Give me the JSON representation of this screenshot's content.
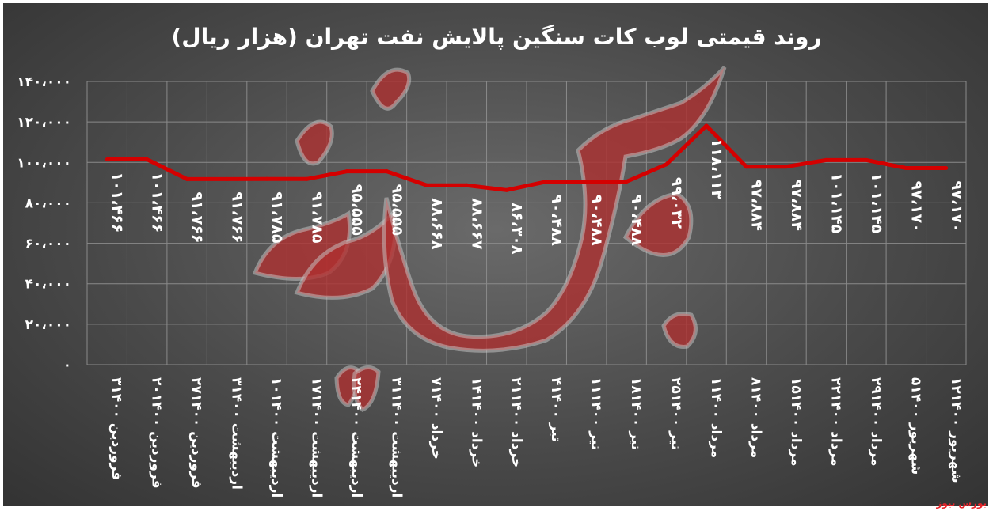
{
  "chart_data": {
    "type": "line",
    "title": "روند قیمتی لوب کات سنگین پالایش نفت تهران (هزار ریال)",
    "categories": [
      "۳فروردین ۱۴۰۰",
      "۲۰فروردین ۱۴۰۰",
      "۲۷فروردین ۱۴۰۰",
      "۳اردیبهشت ۱۴۰۰",
      "۱۰اردیبهشت ۱۴۰۰",
      "۱۷اردیبهشت ۱۴۰۰",
      "۲۴اردیبهشت ۱۴۰۰",
      "۳۱اردیبهشت ۱۴۰۰",
      "۷خرداد ۱۴۰۰",
      "۱۴خرداد ۱۴۰۰",
      "۲۱خرداد ۱۴۰۰",
      "۴تیر ۱۴۰۰",
      "۱۱تیر ۱۴۰۰",
      "۱۸تیر ۱۴۰۰",
      "۲۵تیر ۱۴۰۰",
      "۱مرداد ۱۴۰۰",
      "۸مرداد ۱۴۰۰",
      "۱۵مرداد ۱۴۰۰",
      "۲۲مرداد ۱۴۰۰",
      "۲۹مرداد ۱۴۰۰",
      "۵شهریور ۱۴۰۰",
      "۱۲شهریور ۱۴۰۰"
    ],
    "values": [
      101466,
      101466,
      91766,
      91766,
      91785,
      91785,
      95555,
      95555,
      88668,
      88667,
      86308,
      90488,
      90488,
      90488,
      99032,
      118113,
      97884,
      97884,
      101145,
      101145,
      97170,
      97170
    ],
    "data_labels": [
      "۱۰۱،۴۶۶",
      "۱۰۱،۴۶۶",
      "۹۱،۷۶۶",
      "۹۱،۷۶۶",
      "۹۱،۷۸۵",
      "۹۱،۷۸۵",
      "۹۵،۵۵۵",
      "۹۵،۵۵۵",
      "۸۸،۶۶۸",
      "۸۸،۶۶۷",
      "۸۶،۳۰۸",
      "۹۰،۴۸۸",
      "۹۰،۴۸۸",
      "۹۰،۴۸۸",
      "۹۹،۰۳۲",
      "۱۱۸،۱۱۳",
      "۹۷،۸۸۴",
      "۹۷،۸۸۴",
      "۱۰۱،۱۴۵",
      "۱۰۱،۱۴۵",
      "۹۷،۱۷۰",
      "۹۷،۱۷۰"
    ],
    "ylim": [
      0,
      140000
    ],
    "yticks": [
      0,
      20000,
      40000,
      60000,
      80000,
      100000,
      120000,
      140000
    ],
    "ytick_labels": [
      "۰",
      "۲۰،۰۰۰",
      "۴۰،۰۰۰",
      "۶۰،۰۰۰",
      "۸۰،۰۰۰",
      "۱۰۰،۰۰۰",
      "۱۲۰،۰۰۰",
      "۱۴۰،۰۰۰"
    ],
    "grid": true,
    "line_color": "#d40000",
    "label_color": "#ffffff",
    "background_color": "#4a4a4a"
  },
  "watermark": {
    "text": "بورس نیوز",
    "color": "#e8242a"
  }
}
